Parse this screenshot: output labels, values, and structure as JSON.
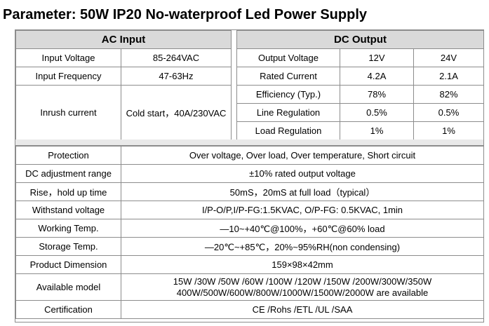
{
  "title": "Parameter: 50W IP20 No-waterproof Led Power Supply",
  "ac_input": {
    "header": "AC Input",
    "rows": [
      {
        "label": "Input Voltage",
        "value": "85-264VAC"
      },
      {
        "label": "Input Frequency",
        "value": "47-63Hz"
      },
      {
        "label": "Inrush current",
        "value": "Cold start，40A/230VAC"
      }
    ]
  },
  "dc_output": {
    "header": "DC Output",
    "rows": [
      {
        "label": "Output Voltage",
        "v12": "12V",
        "v24": "24V"
      },
      {
        "label": "Rated Current",
        "v12": "4.2A",
        "v24": "2.1A"
      },
      {
        "label": "Efficiency (Typ.)",
        "v12": "78%",
        "v24": "82%"
      },
      {
        "label": "Line Regulation",
        "v12": "0.5%",
        "v24": "0.5%"
      },
      {
        "label": "Load Regulation",
        "v12": "1%",
        "v24": "1%"
      }
    ]
  },
  "specs": {
    "protection": {
      "label": "Protection",
      "value": "Over voltage, Over load, Over temperature, Short circuit"
    },
    "dc_adjust": {
      "label": "DC adjustment range",
      "value": "±10% rated output voltage"
    },
    "rise_hold": {
      "label": "Rise，hold up time",
      "value": "50mS，20mS at full load（typical）"
    },
    "withstand": {
      "label": "Withstand voltage",
      "value": "I/P-O/P,I/P-FG:1.5KVAC, O/P-FG: 0.5KVAC, 1min"
    },
    "working_temp": {
      "label": "Working Temp.",
      "value": "—10~+40℃@100%，+60℃@60% load"
    },
    "storage_temp": {
      "label": "Storage Temp.",
      "value": "—20℃~+85℃，20%~95%RH(non condensing)"
    },
    "dimension": {
      "label": "Product Dimension",
      "value": "159×98×42mm"
    },
    "models": {
      "label": "Available model",
      "line1": "15W /30W /50W /60W /100W /120W /150W /200W/300W/350W",
      "line2": "400W/500W/600W/800W/1000W/1500W/2000W  are available"
    },
    "certification": {
      "label": "Certification",
      "value": "CE /Rohs /ETL /UL /SAA"
    }
  }
}
